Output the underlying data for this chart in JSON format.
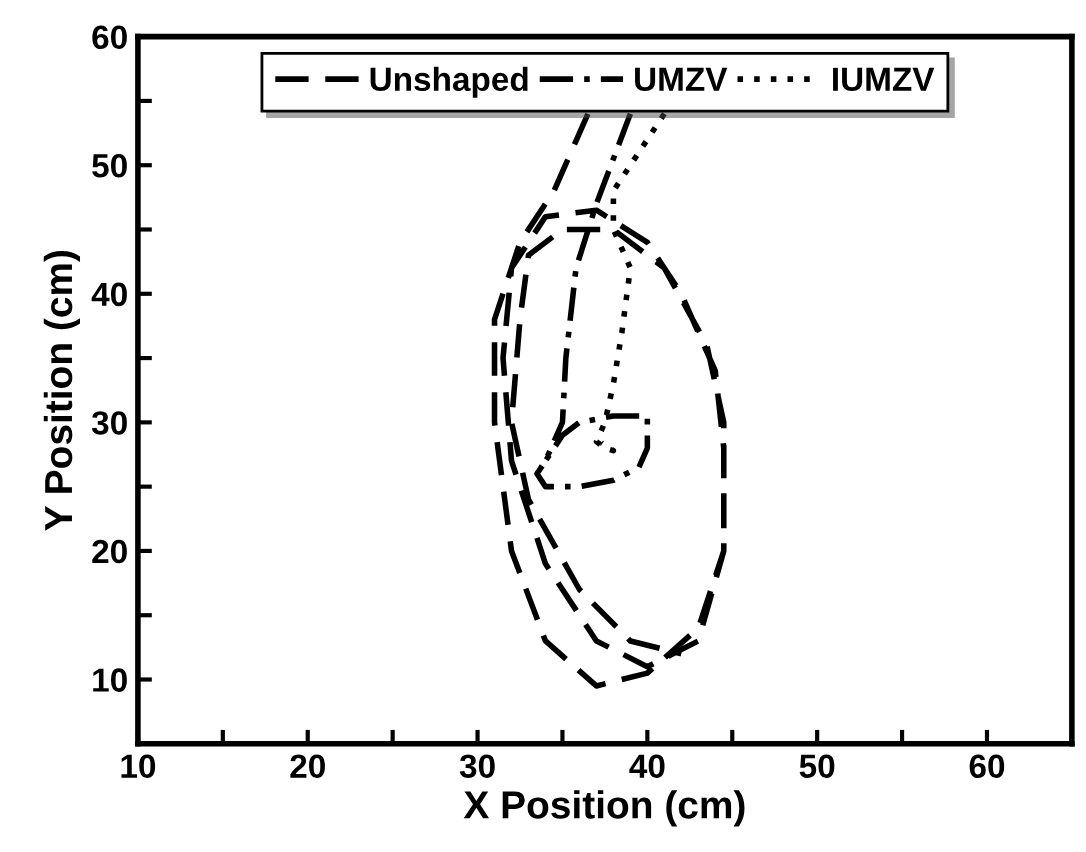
{
  "chart_data": {
    "type": "line",
    "xlabel": "X Position (cm)",
    "ylabel": "Y Position (cm)",
    "xlim": [
      10,
      65
    ],
    "ylim": [
      5,
      60
    ],
    "xticks": [
      10,
      {
        "value": 15,
        "label": null
      },
      20,
      {
        "value": 25,
        "label": null
      },
      30,
      {
        "value": 35,
        "label": null
      },
      40,
      {
        "value": 45,
        "label": null
      },
      50,
      {
        "value": 55,
        "label": null
      },
      60
    ],
    "yticks": [
      {
        "value": 5,
        "label": null
      },
      10,
      {
        "value": 15,
        "label": null
      },
      20,
      {
        "value": 25,
        "label": null
      },
      30,
      {
        "value": 35,
        "label": null
      },
      40,
      {
        "value": 45,
        "label": null
      },
      50,
      {
        "value": 55,
        "label": null
      },
      60
    ],
    "grid": false,
    "legend": "top",
    "marker": "none",
    "series": [
      {
        "name": "Unshaped",
        "color": "#000000",
        "line_style": "dashed",
        "x": [
          36.5,
          34.5,
          32.5,
          31,
          31,
          32,
          34,
          37,
          40,
          43,
          44.5,
          44.5,
          44,
          42,
          40,
          37,
          34,
          32,
          31.5,
          32,
          34,
          37,
          40,
          43,
          44.5,
          44.5,
          43.5,
          41,
          38,
          35,
          33,
          32.5,
          32,
          33,
          36,
          39,
          42
        ],
        "values": [
          54,
          48,
          44,
          38,
          30,
          20,
          13,
          9.5,
          10.5,
          14,
          20,
          28,
          34,
          40,
          44,
          46.5,
          46,
          42,
          35,
          27,
          19,
          13,
          11,
          13,
          20,
          30,
          36,
          42,
          45,
          45,
          43,
          38,
          30,
          24,
          17,
          13,
          12
        ]
      },
      {
        "name": "UMZV",
        "color": "#000000",
        "line_style": "dashdot",
        "x": [
          39,
          37,
          35.8,
          35.2,
          35,
          34,
          33.5,
          34,
          36,
          38,
          39.5,
          40,
          40,
          38,
          36,
          35,
          34
        ],
        "values": [
          54,
          47,
          42,
          35,
          30,
          27,
          26,
          25,
          25,
          25.5,
          26.5,
          28,
          30.5,
          30.5,
          30,
          29,
          27
        ]
      },
      {
        "name": "IUMZV",
        "color": "#000000",
        "line_style": "dotted",
        "x": [
          41,
          40,
          38,
          38,
          39,
          38.5,
          38,
          37.5,
          37,
          37.5,
          38,
          37.3
        ],
        "values": [
          54,
          52,
          48,
          45,
          42,
          37,
          33,
          30,
          28.5,
          28,
          27.8,
          28.4
        ]
      }
    ]
  }
}
